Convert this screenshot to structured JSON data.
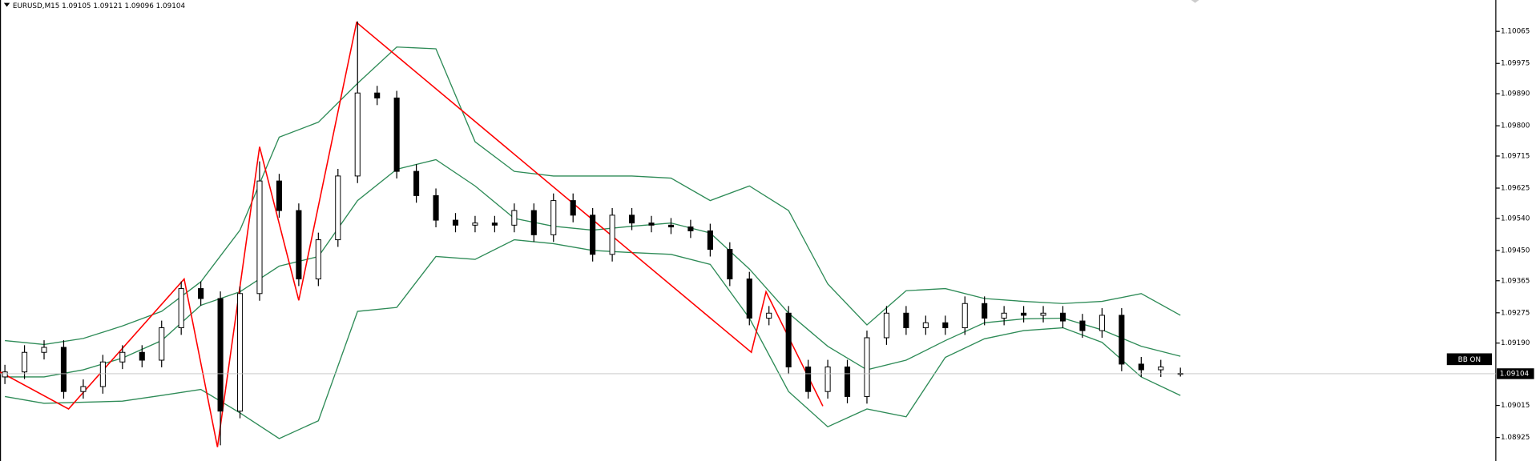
{
  "chart_data": {
    "type": "candlestick",
    "title": "EURUSD,M15  1.09105 1.09121 1.09096 1.09104",
    "up_color": "#ffffff",
    "down_color": "#000000",
    "open": [
      1.09095,
      1.09109,
      1.09164,
      1.09178,
      1.09054,
      1.09068,
      1.09137,
      1.09164,
      1.09142,
      1.09233,
      1.09343,
      1.09315,
      1.08999,
      1.09329,
      1.09645,
      1.09562,
      1.0937,
      1.0948,
      1.09659,
      1.09892,
      1.09878,
      1.09672,
      1.09604,
      1.09535,
      1.09521,
      1.09527,
      1.09521,
      1.09562,
      1.09494,
      1.0959,
      1.09549,
      1.09439,
      1.09549,
      1.09527,
      1.09521,
      1.09516,
      1.09505,
      1.09453,
      1.0937,
      1.0926,
      1.09274,
      1.09123,
      1.09054,
      1.09123,
      1.0904,
      1.09205,
      1.09274,
      1.09233,
      1.09247,
      1.09233,
      1.09301,
      1.0926,
      1.09274,
      1.09268,
      1.09274,
      1.09252,
      1.09225,
      1.09268,
      1.09131,
      1.09115,
      1.09105
    ],
    "high": [
      1.09129,
      1.09184,
      1.09198,
      1.09198,
      1.09088,
      1.09157,
      1.09184,
      1.09184,
      1.09253,
      1.09363,
      1.09363,
      1.09335,
      1.09349,
      1.097,
      1.09665,
      1.09582,
      1.095,
      1.09679,
      1.10093,
      1.09912,
      1.09898,
      1.09692,
      1.09624,
      1.09555,
      1.09547,
      1.09547,
      1.09582,
      1.09582,
      1.0961,
      1.0961,
      1.09569,
      1.09569,
      1.09569,
      1.09547,
      1.09541,
      1.09536,
      1.09525,
      1.09473,
      1.0939,
      1.09294,
      1.09294,
      1.09143,
      1.09143,
      1.09143,
      1.09225,
      1.09294,
      1.09294,
      1.09267,
      1.09267,
      1.09321,
      1.09321,
      1.09294,
      1.09294,
      1.09294,
      1.09294,
      1.09272,
      1.09288,
      1.09288,
      1.09151,
      1.09143,
      1.09121
    ],
    "low": [
      1.09075,
      1.09089,
      1.09144,
      1.09034,
      1.09034,
      1.09048,
      1.09117,
      1.09122,
      1.09122,
      1.09213,
      1.09295,
      1.08903,
      1.08979,
      1.09309,
      1.09542,
      1.0935,
      1.0935,
      1.0946,
      1.09639,
      1.09858,
      1.09652,
      1.09584,
      1.09515,
      1.09501,
      1.09501,
      1.09501,
      1.09501,
      1.09474,
      1.09474,
      1.09529,
      1.09419,
      1.09419,
      1.09507,
      1.09501,
      1.09496,
      1.09485,
      1.09433,
      1.0935,
      1.0924,
      1.0924,
      1.09103,
      1.09034,
      1.09034,
      1.09021,
      1.0902,
      1.09185,
      1.09213,
      1.09213,
      1.09213,
      1.09213,
      1.0924,
      1.0924,
      1.09248,
      1.09248,
      1.09232,
      1.09205,
      1.09205,
      1.09111,
      1.09095,
      1.09095,
      1.09096
    ],
    "close": [
      1.09109,
      1.09164,
      1.09178,
      1.09054,
      1.09068,
      1.09137,
      1.09164,
      1.09142,
      1.09233,
      1.09343,
      1.09315,
      1.08999,
      1.09329,
      1.09645,
      1.09562,
      1.0937,
      1.0948,
      1.09659,
      1.09892,
      1.09878,
      1.09672,
      1.09604,
      1.09535,
      1.09521,
      1.09527,
      1.09521,
      1.09562,
      1.09494,
      1.0959,
      1.09549,
      1.09439,
      1.09549,
      1.09527,
      1.09521,
      1.09516,
      1.09505,
      1.09453,
      1.0937,
      1.0926,
      1.09274,
      1.09123,
      1.09054,
      1.09123,
      1.0904,
      1.09205,
      1.09274,
      1.09233,
      1.09247,
      1.09233,
      1.09301,
      1.0926,
      1.09274,
      1.09268,
      1.09274,
      1.09252,
      1.09225,
      1.09268,
      1.09131,
      1.09115,
      1.09123,
      1.09104
    ],
    "band_x": [
      0,
      2,
      4,
      6,
      8,
      10,
      12,
      14,
      16,
      18,
      20,
      22,
      24,
      26,
      28,
      30,
      32,
      34,
      36,
      38,
      40,
      42,
      44,
      46,
      48,
      50,
      52,
      54,
      56,
      58,
      60
    ],
    "bands": [
      {
        "color": "#2e8b57",
        "values": [
          1.09197,
          1.09186,
          1.09203,
          1.09238,
          1.09279,
          1.09362,
          1.09507,
          1.09768,
          1.0981,
          1.09919,
          1.10021,
          1.10016,
          1.09755,
          1.09672,
          1.09659,
          1.09659,
          1.09659,
          1.09653,
          1.0959,
          1.09631,
          1.09562,
          1.09356,
          1.09241,
          1.09337,
          1.09343,
          1.09315,
          1.09307,
          1.09301,
          1.09307,
          1.09329,
          1.09268
        ]
      },
      {
        "color": "#2e8b57",
        "values": [
          1.09095,
          1.09095,
          1.09115,
          1.09148,
          1.09197,
          1.09296,
          1.09334,
          1.09406,
          1.09433,
          1.0959,
          1.09678,
          1.09705,
          1.09631,
          1.0954,
          1.09518,
          1.09507,
          1.09518,
          1.09527,
          1.09499,
          1.09398,
          1.09274,
          1.09181,
          1.09115,
          1.09142,
          1.09197,
          1.09247,
          1.09258,
          1.0926,
          1.09227,
          1.09181,
          1.09153
        ]
      },
      {
        "color": "#2e8b57",
        "values": [
          1.0904,
          1.09021,
          1.09024,
          1.09027,
          1.09043,
          1.0906,
          1.08994,
          1.08922,
          1.08972,
          1.09279,
          1.0929,
          1.09433,
          1.09425,
          1.0948,
          1.09469,
          1.0945,
          1.09444,
          1.09439,
          1.09411,
          1.0926,
          1.09054,
          1.08955,
          1.09005,
          1.08983,
          1.0915,
          1.09202,
          1.09225,
          1.09233,
          1.09192,
          1.09095,
          1.09043
        ]
      }
    ],
    "zigzag": {
      "color": "#ff0000",
      "x": [
        -0.25,
        3.25,
        9.15,
        10.85,
        13,
        15,
        17.95,
        38.1,
        38.85,
        41.75
      ],
      "values": [
        1.09109,
        1.09005,
        1.0937,
        1.08898,
        1.09741,
        1.0931,
        1.1009,
        1.09164,
        1.09334,
        1.09013
      ]
    },
    "current_price": 1.09104,
    "indicator_label": "BB ON",
    "ylim": [
      1.08859,
      1.10153
    ],
    "yticks": [
      1.10065,
      1.09975,
      {
        "value": 1.0989,
        "label": "1.09890"
      },
      {
        "value": 1.098,
        "label": "1.09800"
      },
      1.09715,
      1.09625,
      {
        "value": 1.0954,
        "label": "1.09540"
      },
      {
        "value": 1.0945,
        "label": "1.09450"
      },
      1.09365,
      1.09275,
      {
        "value": 1.0919,
        "label": "1.09190"
      },
      1.09015,
      1.08925
    ],
    "grid": false
  }
}
